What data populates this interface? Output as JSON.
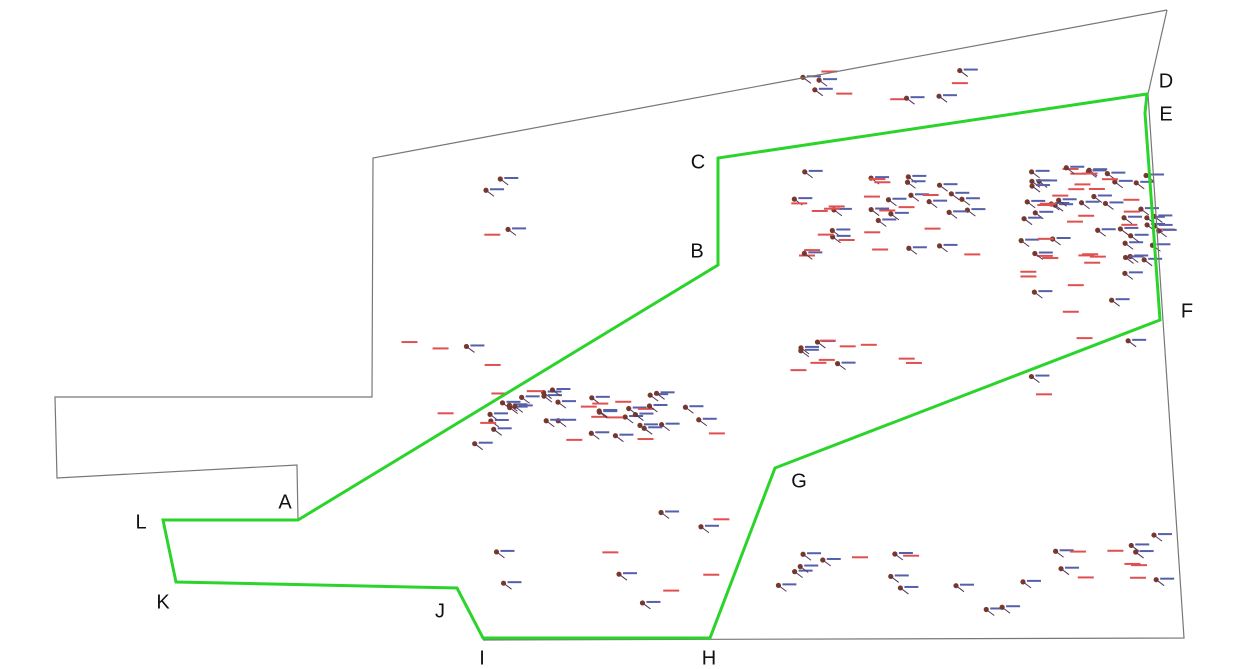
{
  "points": [
    {
      "label": "A"
    },
    {
      "label": "B"
    },
    {
      "label": "C"
    },
    {
      "label": "D"
    },
    {
      "label": "E"
    },
    {
      "label": "F"
    },
    {
      "label": "G"
    },
    {
      "label": "H"
    },
    {
      "label": "I"
    },
    {
      "label": "J"
    },
    {
      "label": "K"
    },
    {
      "label": "L"
    }
  ]
}
